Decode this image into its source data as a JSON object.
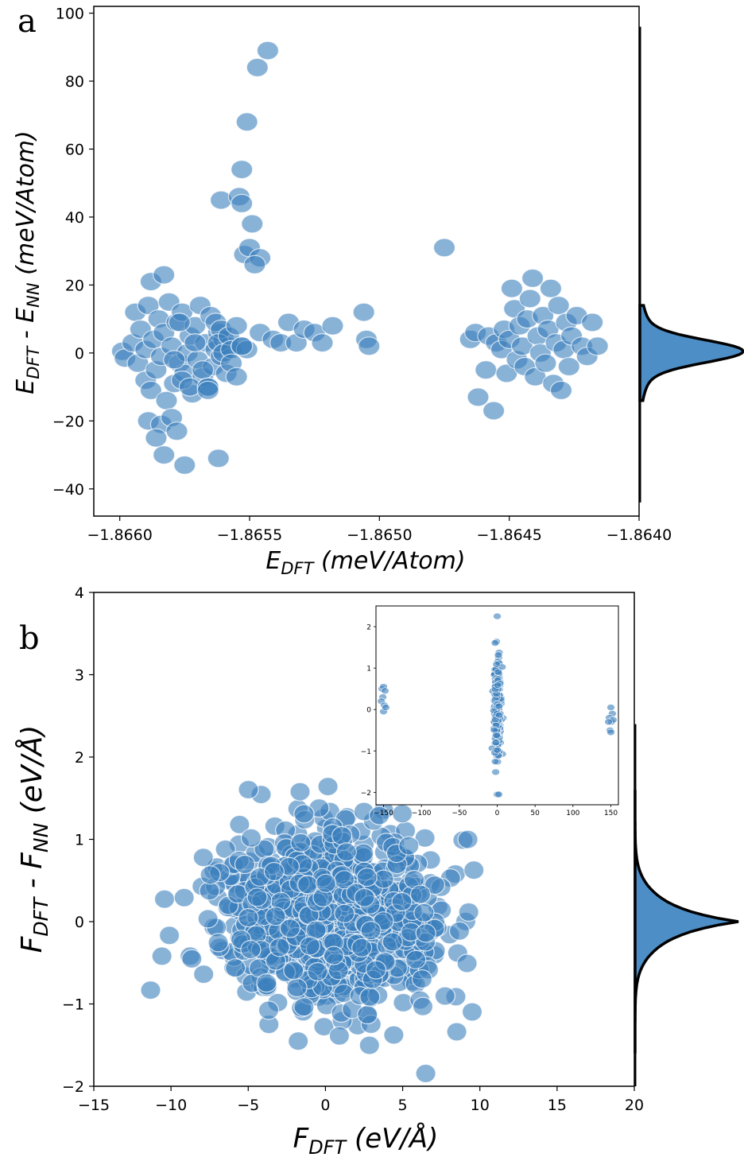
{
  "chart_data": [
    {
      "type": "scatter",
      "panel_label": "a",
      "xlabel_main": "E",
      "xlabel_sub": "DFT",
      "xlabel_unit": " (meV/Atom)",
      "ylabel_parts": [
        "E",
        "DFT",
        " - E",
        "NN",
        " (meV/Atom)"
      ],
      "xlim": [
        -1.8661,
        -1.864
      ],
      "ylim": [
        -48,
        102
      ],
      "xticks": [
        -1.866,
        -1.8655,
        -1.865,
        -1.8645,
        -1.864
      ],
      "xtick_labels": [
        "−1.8660",
        "−1.8655",
        "−1.8650",
        "−1.8645",
        "−1.8640"
      ],
      "yticks": [
        -40,
        -20,
        0,
        20,
        40,
        60,
        80,
        100
      ],
      "ytick_labels": [
        "−40",
        "−20",
        "0",
        "20",
        "40",
        "60",
        "80",
        "100"
      ],
      "points": [
        [
          -1.86599,
          0.5
        ],
        [
          -1.86598,
          -1.5
        ],
        [
          -1.86595,
          3
        ],
        [
          -1.86594,
          12
        ],
        [
          -1.86593,
          -3
        ],
        [
          -1.86592,
          7
        ],
        [
          -1.8659,
          -8
        ],
        [
          -1.8659,
          1
        ],
        [
          -1.86589,
          14
        ],
        [
          -1.86588,
          -11
        ],
        [
          -1.86587,
          4
        ],
        [
          -1.86586,
          -5
        ],
        [
          -1.86585,
          10
        ],
        [
          -1.86584,
          -1
        ],
        [
          -1.86583,
          6
        ],
        [
          -1.86582,
          -14
        ],
        [
          -1.86581,
          15
        ],
        [
          -1.8658,
          2
        ],
        [
          -1.86579,
          -9
        ],
        [
          -1.86578,
          9
        ],
        [
          -1.86577,
          -3
        ],
        [
          -1.86576,
          12
        ],
        [
          -1.86575,
          -6
        ],
        [
          -1.86574,
          0
        ],
        [
          -1.86573,
          5
        ],
        [
          -1.86572,
          -12
        ],
        [
          -1.86571,
          8
        ],
        [
          -1.8657,
          -2
        ],
        [
          -1.86569,
          14
        ],
        [
          -1.86568,
          -7
        ],
        [
          -1.86567,
          3
        ],
        [
          -1.86566,
          -10
        ],
        [
          -1.86565,
          11
        ],
        [
          -1.86564,
          -4
        ],
        [
          -1.86563,
          1
        ],
        [
          -1.86562,
          6
        ],
        [
          -1.86561,
          -1
        ],
        [
          -1.8656,
          4
        ],
        [
          -1.86559,
          -6
        ],
        [
          -1.86558,
          2
        ],
        [
          -1.86588,
          21
        ],
        [
          -1.86583,
          23
        ],
        [
          -1.86589,
          -20
        ],
        [
          -1.86584,
          -21
        ],
        [
          -1.8658,
          -19
        ],
        [
          -1.86578,
          -23
        ],
        [
          -1.86586,
          -25
        ],
        [
          -1.86583,
          -30
        ],
        [
          -1.86575,
          -33
        ],
        [
          -1.86579,
          -2
        ],
        [
          -1.86576,
          -8
        ],
        [
          -1.86573,
          -10
        ],
        [
          -1.86577,
          9
        ],
        [
          -1.86571,
          3
        ],
        [
          -1.86568,
          -5
        ],
        [
          -1.86566,
          -10
        ],
        [
          -1.86566,
          -11
        ],
        [
          -1.86563,
          9
        ],
        [
          -1.86561,
          7
        ],
        [
          -1.86562,
          3
        ],
        [
          -1.8656,
          0
        ],
        [
          -1.86558,
          5
        ],
        [
          -1.86557,
          1
        ],
        [
          -1.86557,
          -3
        ],
        [
          -1.86555,
          8
        ],
        [
          -1.86553,
          2
        ],
        [
          -1.86551,
          1
        ],
        [
          -1.86562,
          -31
        ],
        [
          -1.86555,
          -7
        ],
        [
          -1.86553,
          2
        ],
        [
          -1.86561,
          45
        ],
        [
          -1.86554,
          46
        ],
        [
          -1.86553,
          44
        ],
        [
          -1.86553,
          54
        ],
        [
          -1.86551,
          68
        ],
        [
          -1.86547,
          84
        ],
        [
          -1.86543,
          89
        ],
        [
          -1.86549,
          38
        ],
        [
          -1.86552,
          29
        ],
        [
          -1.8655,
          31
        ],
        [
          -1.86546,
          28
        ],
        [
          -1.86548,
          26
        ],
        [
          -1.86546,
          6
        ],
        [
          -1.86541,
          4
        ],
        [
          -1.86538,
          3
        ],
        [
          -1.86535,
          9
        ],
        [
          -1.86532,
          3
        ],
        [
          -1.86529,
          7
        ],
        [
          -1.86525,
          6
        ],
        [
          -1.86522,
          3
        ],
        [
          -1.86518,
          8
        ],
        [
          -1.86506,
          12
        ],
        [
          -1.86505,
          4
        ],
        [
          -1.86504,
          2
        ],
        [
          -1.86475,
          31
        ],
        [
          -1.86465,
          4
        ],
        [
          -1.86463,
          6
        ],
        [
          -1.86462,
          -13
        ],
        [
          -1.86459,
          -5
        ],
        [
          -1.86458,
          5
        ],
        [
          -1.86456,
          -17
        ],
        [
          -1.86455,
          3
        ],
        [
          -1.86453,
          1
        ],
        [
          -1.86452,
          7
        ],
        [
          -1.86451,
          -6
        ],
        [
          -1.8645,
          4
        ],
        [
          -1.86449,
          19
        ],
        [
          -1.86448,
          13
        ],
        [
          -1.86447,
          -2
        ],
        [
          -1.86446,
          8
        ],
        [
          -1.86445,
          2
        ],
        [
          -1.86444,
          -4
        ],
        [
          -1.86443,
          10
        ],
        [
          -1.86442,
          16
        ],
        [
          -1.86441,
          22
        ],
        [
          -1.8644,
          -7
        ],
        [
          -1.86439,
          5
        ],
        [
          -1.86438,
          0
        ],
        [
          -1.86437,
          11
        ],
        [
          -1.86436,
          -3
        ],
        [
          -1.86435,
          7
        ],
        [
          -1.86434,
          19
        ],
        [
          -1.86433,
          -9
        ],
        [
          -1.86432,
          3
        ],
        [
          -1.86431,
          14
        ],
        [
          -1.8643,
          -11
        ],
        [
          -1.86429,
          1
        ],
        [
          -1.86428,
          9
        ],
        [
          -1.86427,
          -4
        ],
        [
          -1.86426,
          5
        ],
        [
          -1.86424,
          11
        ],
        [
          -1.86422,
          2
        ],
        [
          -1.8642,
          -1
        ],
        [
          -1.86418,
          9
        ],
        [
          -1.86416,
          2
        ]
      ],
      "density_y": [
        -44,
        12,
        30,
        96
      ],
      "point_color": "#3b7fbd"
    },
    {
      "type": "scatter",
      "panel_label": "b",
      "xlabel_main": "F",
      "xlabel_sub": "DFT",
      "xlabel_unit": " (eV/Å)",
      "ylabel_parts": [
        "F",
        "DFT",
        " - F",
        "NN",
        " (eV/Å)"
      ],
      "xlim": [
        -15,
        20
      ],
      "ylim": [
        -2,
        4
      ],
      "xticks": [
        -15,
        -10,
        -5,
        0,
        5,
        10,
        15,
        20
      ],
      "xtick_labels": [
        "−15",
        "−10",
        "−5",
        "0",
        "5",
        "10",
        "15",
        "20"
      ],
      "yticks": [
        -2,
        -1,
        0,
        1,
        2,
        3,
        4
      ],
      "ytick_labels": [
        "−2",
        "−1",
        "0",
        "1",
        "2",
        "3",
        "4"
      ],
      "inset": {
        "xlim": [
          -160,
          160
        ],
        "ylim": [
          -2.3,
          2.5
        ],
        "xticks": [
          -150,
          -100,
          -50,
          0,
          50,
          100,
          150
        ],
        "xtick_labels": [
          "−150",
          "−100",
          "−50",
          "0",
          "50",
          "100",
          "150"
        ],
        "yticks": [
          -2,
          -1,
          0,
          1,
          2
        ],
        "ytick_labels": [
          "−2",
          "−1",
          "0",
          "1",
          "2"
        ]
      },
      "point_color": "#3b7fbd"
    }
  ]
}
